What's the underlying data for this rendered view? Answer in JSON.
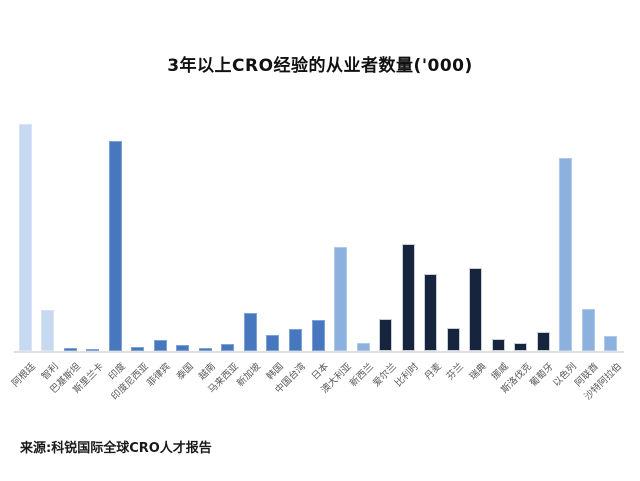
{
  "chart": {
    "title": "3年以上CRO经验的从业者数量('000)",
    "source": "来源:科锐国际全球CRO人才报告"
  },
  "chart_data": {
    "type": "bar",
    "title": "3年以上CRO经验的从业者数量('000)",
    "xlabel": "",
    "ylabel": "",
    "unit": "'000",
    "ylim": [
      0,
      26
    ],
    "grid": false,
    "legend": "none",
    "source": "来源:科锐国际全球CRO人才报告",
    "categories": [
      "阿根廷",
      "智利",
      "巴基斯坦",
      "斯里兰卡",
      "印度",
      "印度尼西亚",
      "菲律宾",
      "泰国",
      "越南",
      "马来西亚",
      "新加坡",
      "韩国",
      "中国台湾",
      "日本",
      "澳大利亚",
      "新西兰",
      "爱尔兰",
      "比利时",
      "丹麦",
      "芬兰",
      "瑞典",
      "挪威",
      "斯洛伐克",
      "葡萄牙",
      "以色列",
      "阿联酋",
      "沙特阿拉伯"
    ],
    "values": [
      22.6,
      4.1,
      0.3,
      0.1,
      20.9,
      0.4,
      1.1,
      0.6,
      0.3,
      0.7,
      3.8,
      1.6,
      2.2,
      3.1,
      10.4,
      0.8,
      3.2,
      10.7,
      7.7,
      2.3,
      8.3,
      1.2,
      0.8,
      1.9,
      19.2,
      4.2,
      1.5
    ],
    "bar_groups": [
      "americas",
      "americas",
      "asia",
      "asia",
      "asia",
      "asia",
      "asia",
      "asia",
      "asia",
      "asia",
      "asia",
      "asia",
      "asia",
      "asia",
      "oceania",
      "oceania",
      "europe",
      "europe",
      "europe",
      "europe",
      "europe",
      "europe",
      "europe",
      "europe",
      "mideast",
      "mideast",
      "mideast"
    ],
    "group_colors": {
      "americas": {
        "fill": "#C7D9F0",
        "border": "#D6E4F5"
      },
      "asia": {
        "fill": "#4777BE",
        "border": "#7EA2D4"
      },
      "oceania": {
        "fill": "#8CB1DF",
        "border": "#AEC9EC"
      },
      "europe": {
        "fill": "#16253D",
        "border": "#C9CFD8"
      },
      "mideast": {
        "fill": "#8CB1DF",
        "border": "#AEC9EC"
      }
    },
    "axis_line_color": "#e0e0e0",
    "label_text_color": "#595959"
  }
}
